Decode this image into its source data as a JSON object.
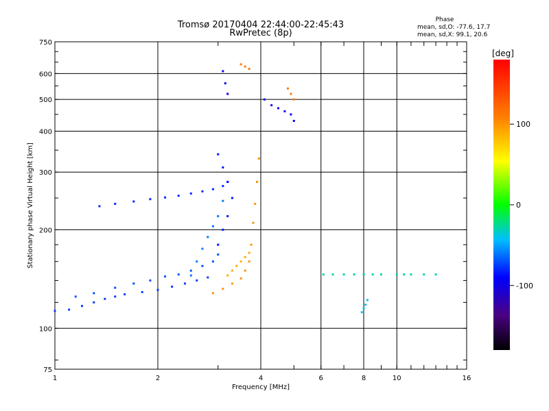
{
  "chart_data": {
    "type": "scatter",
    "title": "Tromsø 20170404 22:44:00-22:45:43",
    "subtitle": "RwPretec (8p)",
    "xlabel": "Frequency [MHz]",
    "ylabel": "Stationary phase Virtual Height [km]",
    "x_scale": "log",
    "y_scale": "log",
    "xlim": [
      1,
      16
    ],
    "ylim": [
      75,
      750
    ],
    "x_ticks": [
      1,
      2,
      4,
      6,
      8,
      10,
      16
    ],
    "y_ticks": [
      75,
      100,
      200,
      300,
      400,
      500,
      600,
      750
    ],
    "grid": true,
    "phase_stats": {
      "heading": "Phase",
      "o_mode": "mean, sd,O: -77.6, 17.7",
      "x_mode": "mean, sd,X:  99.1, 20.6"
    },
    "colorbar": {
      "label": "[deg]",
      "range": [
        -180,
        180
      ],
      "ticks": [
        -100,
        0,
        100
      ]
    },
    "traces": [
      {
        "name": "",
        "phase_deg": -75,
        "x": [
          1.0,
          1.1,
          1.2,
          1.3,
          1.4,
          1.5,
          1.6,
          1.8,
          2.0,
          2.2,
          2.4,
          2.6,
          2.8
        ],
        "y": [
          113,
          114,
          117,
          120,
          123,
          125,
          127,
          129,
          131,
          134,
          137,
          140,
          143
        ]
      },
      {
        "name": "",
        "phase_deg": -70,
        "x": [
          1.15,
          1.3,
          1.5,
          1.7,
          1.9,
          2.1,
          2.3,
          2.5,
          2.7,
          2.9,
          3.0
        ],
        "y": [
          125,
          128,
          133,
          137,
          140,
          144,
          146,
          150,
          155,
          160,
          168
        ]
      },
      {
        "name": "",
        "phase_deg": -60,
        "x": [
          2.5,
          2.6,
          2.7,
          2.8,
          2.9,
          3.0,
          3.1,
          3.2
        ],
        "y": [
          145,
          160,
          175,
          190,
          205,
          220,
          245,
          280
        ]
      },
      {
        "name": "",
        "phase_deg": -80,
        "x": [
          1.35,
          1.5,
          1.7,
          1.9,
          2.1,
          2.3,
          2.5,
          2.7,
          2.9,
          3.1,
          3.2
        ],
        "y": [
          236,
          240,
          244,
          248,
          251,
          254,
          258,
          262,
          266,
          272,
          280
        ]
      },
      {
        "name": "",
        "phase_deg": -85,
        "x": [
          3.0,
          3.1,
          3.2,
          3.3,
          3.2,
          3.1,
          3.0
        ],
        "y": [
          180,
          200,
          220,
          250,
          280,
          310,
          340
        ]
      },
      {
        "name": "",
        "phase_deg": 100,
        "x": [
          2.9,
          3.1,
          3.3,
          3.5,
          3.6,
          3.7,
          3.75,
          3.8,
          3.85,
          3.9,
          3.95
        ],
        "y": [
          128,
          132,
          137,
          142,
          150,
          160,
          180,
          210,
          240,
          280,
          330
        ]
      },
      {
        "name": "",
        "phase_deg": 90,
        "x": [
          3.2,
          3.3,
          3.4,
          3.5,
          3.6,
          3.7
        ],
        "y": [
          145,
          150,
          155,
          160,
          165,
          170
        ]
      },
      {
        "name": "",
        "phase_deg": -95,
        "x": [
          4.1,
          4.3,
          4.5,
          4.7,
          4.9,
          5.0
        ],
        "y": [
          500,
          480,
          470,
          460,
          450,
          430
        ]
      },
      {
        "name": "",
        "phase_deg": 110,
        "x": [
          3.5,
          3.6,
          3.7,
          4.8,
          4.9,
          5.0
        ],
        "y": [
          640,
          630,
          620,
          540,
          520,
          500
        ]
      },
      {
        "name": "",
        "phase_deg": -95,
        "x": [
          3.1,
          3.15,
          3.2
        ],
        "y": [
          610,
          560,
          520
        ]
      },
      {
        "name": "",
        "phase_deg": -30,
        "x": [
          6.1,
          6.5,
          7.0,
          7.5,
          8.0,
          8.5,
          9.0,
          10.0,
          10.5,
          11.0,
          12.0,
          13.0
        ],
        "y": [
          146,
          146,
          146,
          146,
          146,
          146,
          146,
          146,
          146,
          146,
          146,
          146
        ]
      },
      {
        "name": "",
        "phase_deg": -40,
        "x": [
          7.9,
          8.0,
          8.1,
          8.2
        ],
        "y": [
          112,
          115,
          118,
          122
        ]
      }
    ]
  }
}
